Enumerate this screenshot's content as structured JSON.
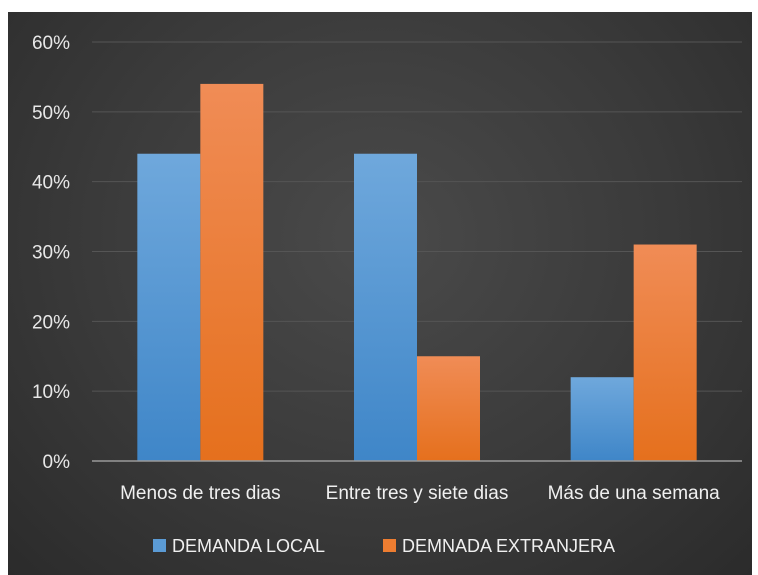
{
  "chart_data": {
    "type": "bar",
    "categories": [
      "Menos de tres dias",
      "Entre tres y siete dias",
      "Más de una semana"
    ],
    "series": [
      {
        "name": "DEMANDA LOCAL",
        "values": [
          44,
          44,
          12
        ],
        "color": "#5b9bd5"
      },
      {
        "name": "DEMNADA EXTRANJERA",
        "values": [
          54,
          15,
          31
        ],
        "color": "#ed7d31"
      }
    ],
    "yticks": [
      "0%",
      "10%",
      "20%",
      "30%",
      "40%",
      "50%",
      "60%"
    ],
    "ylim": [
      0,
      60
    ],
    "grid": true,
    "legend": "bottom",
    "background": "#3a3a3a"
  }
}
